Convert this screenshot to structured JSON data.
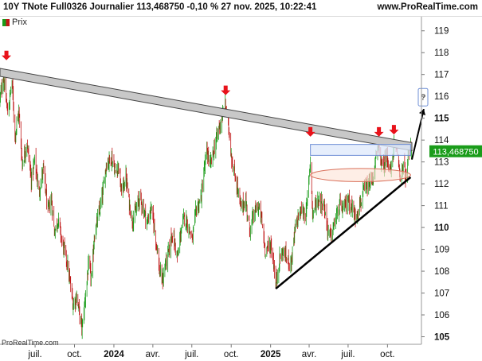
{
  "header": {
    "title": "10Y TNote Full0326 Journalier 113,468750 -0,10 % 27 nov. 2025, 10:22:41",
    "site": "www.ProRealTime.com"
  },
  "legend": {
    "label": "Prix"
  },
  "watermark": "ProRealTime.com",
  "chart_data": {
    "type": "candlestick",
    "instrument": "10Y TNote Full0326",
    "period": "Journalier",
    "last_price_label": "113,468750",
    "y_ticks": [
      105,
      106,
      107,
      108,
      109,
      110,
      111,
      112,
      113,
      114,
      115,
      116,
      117,
      118,
      119
    ],
    "major_y_ticks": [
      105,
      110,
      115
    ],
    "ylim": [
      104.8,
      119.5
    ],
    "x_ticks": [
      "juil.",
      "oct.",
      "2024",
      "avr.",
      "juil.",
      "oct.",
      "2025",
      "avr.",
      "juil.",
      "oct."
    ],
    "x_tick_dates": [
      "2023-07-01",
      "2023-10-01",
      "2024-01-01",
      "2024-04-01",
      "2024-07-01",
      "2024-10-01",
      "2025-01-01",
      "2025-04-01",
      "2025-07-01",
      "2025-10-01"
    ],
    "xlim": [
      "2023-04-10",
      "2025-11-27"
    ],
    "close_path": [
      [
        "2023-04-10",
        115.9
      ],
      [
        "2023-04-18",
        116.9
      ],
      [
        "2023-04-28",
        115.2
      ],
      [
        "2023-05-08",
        116.7
      ],
      [
        "2023-05-15",
        114.2
      ],
      [
        "2023-05-24",
        115.3
      ],
      [
        "2023-06-01",
        112.9
      ],
      [
        "2023-06-12",
        113.9
      ],
      [
        "2023-06-22",
        112.2
      ],
      [
        "2023-06-30",
        113.1
      ],
      [
        "2023-07-10",
        111.6
      ],
      [
        "2023-07-20",
        112.7
      ],
      [
        "2023-07-31",
        110.7
      ],
      [
        "2023-08-08",
        111.3
      ],
      [
        "2023-08-15",
        109.8
      ],
      [
        "2023-08-24",
        110.4
      ],
      [
        "2023-09-01",
        109.4
      ],
      [
        "2023-09-12",
        108.6
      ],
      [
        "2023-09-21",
        107.4
      ],
      [
        "2023-09-28",
        106.4
      ],
      [
        "2023-10-06",
        106.9
      ],
      [
        "2023-10-16",
        105.6
      ],
      [
        "2023-10-19",
        105.4
      ],
      [
        "2023-10-26",
        106.8
      ],
      [
        "2023-11-03",
        108.3
      ],
      [
        "2023-11-10",
        107.6
      ],
      [
        "2023-11-16",
        109.6
      ],
      [
        "2023-11-28",
        110.7
      ],
      [
        "2023-12-06",
        111.6
      ],
      [
        "2023-12-14",
        112.9
      ],
      [
        "2023-12-27",
        113.2
      ],
      [
        "2024-01-05",
        112.5
      ],
      [
        "2024-01-12",
        112.9
      ],
      [
        "2024-01-18",
        111.6
      ],
      [
        "2024-01-29",
        112.3
      ],
      [
        "2024-02-05",
        111.2
      ],
      [
        "2024-02-13",
        110.3
      ],
      [
        "2024-02-22",
        110.8
      ],
      [
        "2024-03-01",
        111.4
      ],
      [
        "2024-03-11",
        110.8
      ],
      [
        "2024-03-19",
        110.2
      ],
      [
        "2024-03-28",
        110.9
      ],
      [
        "2024-04-05",
        109.9
      ],
      [
        "2024-04-12",
        108.9
      ],
      [
        "2024-04-16",
        108.0
      ],
      [
        "2024-04-24",
        107.6
      ],
      [
        "2024-05-01",
        108.4
      ],
      [
        "2024-05-10",
        109.0
      ],
      [
        "2024-05-16",
        109.8
      ],
      [
        "2024-05-29",
        108.6
      ],
      [
        "2024-06-06",
        109.9
      ],
      [
        "2024-06-14",
        110.5
      ],
      [
        "2024-06-24",
        110.0
      ],
      [
        "2024-07-02",
        109.4
      ],
      [
        "2024-07-11",
        110.8
      ],
      [
        "2024-07-22",
        111.3
      ],
      [
        "2024-08-02",
        113.1
      ],
      [
        "2024-08-05",
        113.5
      ],
      [
        "2024-08-13",
        112.8
      ],
      [
        "2024-08-22",
        113.6
      ],
      [
        "2024-09-03",
        114.6
      ],
      [
        "2024-09-11",
        115.1
      ],
      [
        "2024-09-18",
        115.6
      ],
      [
        "2024-09-25",
        114.6
      ],
      [
        "2024-10-04",
        112.8
      ],
      [
        "2024-10-14",
        112.0
      ],
      [
        "2024-10-23",
        110.9
      ],
      [
        "2024-11-04",
        111.2
      ],
      [
        "2024-11-13",
        109.9
      ],
      [
        "2024-11-22",
        110.5
      ],
      [
        "2024-12-02",
        111.0
      ],
      [
        "2024-12-10",
        110.5
      ],
      [
        "2024-12-19",
        109.0
      ],
      [
        "2025-01-02",
        109.2
      ],
      [
        "2025-01-10",
        108.1
      ],
      [
        "2025-01-13",
        107.3
      ],
      [
        "2025-01-22",
        108.6
      ],
      [
        "2025-01-31",
        108.9
      ],
      [
        "2025-02-10",
        108.5
      ],
      [
        "2025-02-18",
        108.4
      ],
      [
        "2025-02-28",
        110.0
      ],
      [
        "2025-03-07",
        110.5
      ],
      [
        "2025-03-14",
        110.8
      ],
      [
        "2025-03-25",
        110.6
      ],
      [
        "2025-04-04",
        113.2
      ],
      [
        "2025-04-09",
        110.6
      ],
      [
        "2025-04-17",
        111.1
      ],
      [
        "2025-04-25",
        111.3
      ],
      [
        "2025-05-06",
        111.0
      ],
      [
        "2025-05-15",
        109.8
      ],
      [
        "2025-05-22",
        109.6
      ],
      [
        "2025-06-02",
        110.4
      ],
      [
        "2025-06-12",
        111.0
      ],
      [
        "2025-06-20",
        110.8
      ],
      [
        "2025-07-01",
        111.3
      ],
      [
        "2025-07-10",
        110.9
      ],
      [
        "2025-07-18",
        110.5
      ],
      [
        "2025-07-31",
        111.2
      ],
      [
        "2025-08-08",
        111.7
      ],
      [
        "2025-08-19",
        111.9
      ],
      [
        "2025-08-29",
        112.3
      ],
      [
        "2025-09-05",
        113.3
      ],
      [
        "2025-09-11",
        113.7
      ],
      [
        "2025-09-19",
        112.7
      ],
      [
        "2025-09-30",
        113.3
      ],
      [
        "2025-10-09",
        112.5
      ],
      [
        "2025-10-16",
        113.8
      ],
      [
        "2025-10-24",
        113.4
      ],
      [
        "2025-10-31",
        112.3
      ],
      [
        "2025-11-07",
        112.8
      ],
      [
        "2025-11-14",
        112.2
      ],
      [
        "2025-11-20",
        113.6
      ],
      [
        "2025-11-26",
        113.47
      ]
    ],
    "resistance_line": {
      "from": [
        "2023-04-10",
        117.1
      ],
      "to": [
        "2025-11-27",
        113.7
      ]
    },
    "support_line": {
      "from": [
        "2025-01-13",
        107.2
      ],
      "to": [
        "2025-11-24",
        112.3
      ]
    },
    "range_box": {
      "from": [
        "2025-04-04",
        113.3
      ],
      "to": [
        "2025-11-24",
        113.8
      ]
    },
    "ellipse": {
      "from": [
        "2025-04-04",
        112.1
      ],
      "to": [
        "2025-11-24",
        112.7
      ]
    },
    "down_arrow_marks": [
      [
        "2023-04-25",
        117.4
      ],
      [
        "2024-09-18",
        115.8
      ],
      [
        "2025-04-04",
        113.9
      ],
      [
        "2025-09-11",
        113.9
      ],
      [
        "2025-10-16",
        114.0
      ]
    ],
    "forecast_arrow": {
      "from": [
        "2025-11-27",
        113.4
      ],
      "to": [
        "2025-12-08",
        115.2
      ]
    },
    "question_mark": "?",
    "colors": {
      "up": "#1a9c1a",
      "down": "#c01818",
      "resistance": "#c8c8c8",
      "resistance_edge": "#444444",
      "support": "#000000",
      "box_fill": "#dde8fb",
      "box_edge": "#6f8fd6",
      "ellipse_fill": "#fde3d6",
      "ellipse_edge": "#d9705a",
      "arrow": "#e8121a",
      "price_tag": "#1a9c1a"
    }
  }
}
